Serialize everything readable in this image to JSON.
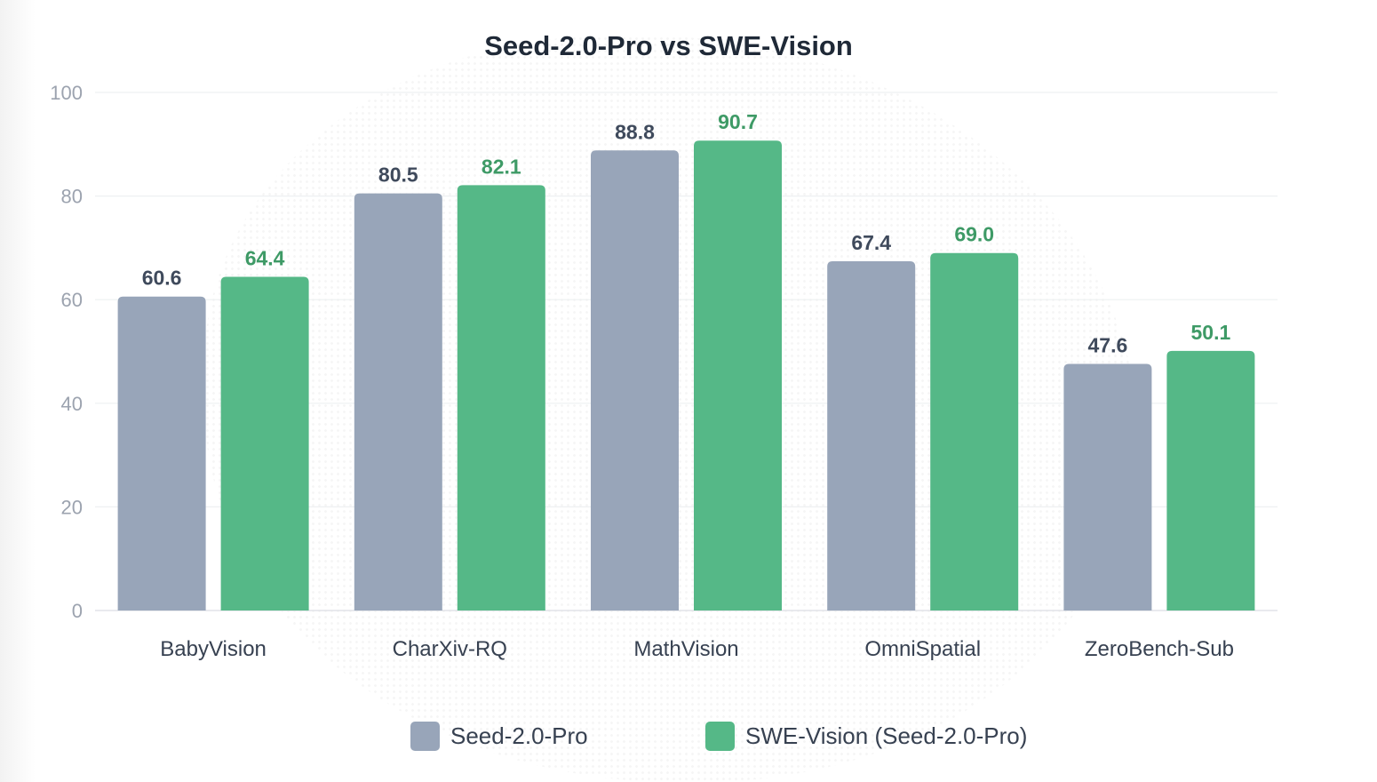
{
  "chart_data": {
    "type": "bar",
    "title": "Seed-2.0-Pro vs SWE-Vision",
    "categories": [
      "BabyVision",
      "CharXiv-RQ",
      "MathVision",
      "OmniSpatial",
      "ZeroBench-Sub"
    ],
    "series": [
      {
        "name": "Seed-2.0-Pro",
        "color": "#98a5b9",
        "label_color": "#3f4a5c",
        "values": [
          60.6,
          80.5,
          88.8,
          67.4,
          47.6
        ],
        "labels": [
          "60.6",
          "80.5",
          "88.8",
          "67.4",
          "47.6"
        ]
      },
      {
        "name": "SWE-Vision (Seed-2.0-Pro)",
        "color": "#55b887",
        "label_color": "#3e9a66",
        "values": [
          64.4,
          82.1,
          90.7,
          69.0,
          50.1
        ],
        "labels": [
          "64.4",
          "82.1",
          "90.7",
          "69.0",
          "50.1"
        ]
      }
    ],
    "ylim": [
      0,
      100
    ],
    "yticks": [
      0,
      20,
      40,
      60,
      80,
      100
    ],
    "xlabel": "",
    "ylabel": "",
    "grid": true,
    "legend_position": "bottom"
  }
}
